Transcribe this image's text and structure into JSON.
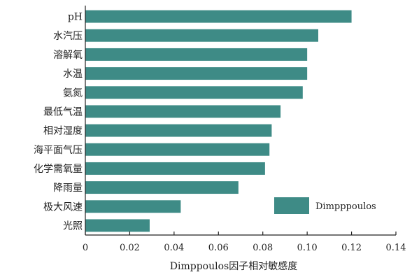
{
  "chart_data": {
    "type": "bar",
    "orientation": "horizontal",
    "categories": [
      "pH",
      "水汽压",
      "溶解氧",
      "水温",
      "氨氮",
      "最低气温",
      "相对湿度",
      "海平面气压",
      "化学需氧量",
      "降雨量",
      "极大风速",
      "光照"
    ],
    "series": [
      {
        "name": "Dimpppoulos",
        "color": "#3e8b86",
        "values": [
          0.12,
          0.105,
          0.1,
          0.1,
          0.098,
          0.088,
          0.084,
          0.083,
          0.081,
          0.069,
          0.043,
          0.029
        ]
      }
    ],
    "xlim": [
      0,
      0.14
    ],
    "xticks": [
      "0",
      "0.02",
      "0.04",
      "0.06",
      "0.08",
      "0.10",
      "0.12",
      "0.14"
    ],
    "xlabel": "Dimppoulos因子相对敏感度",
    "ylabel": "",
    "title": "",
    "grid": false,
    "legend_position": "lower-right"
  }
}
